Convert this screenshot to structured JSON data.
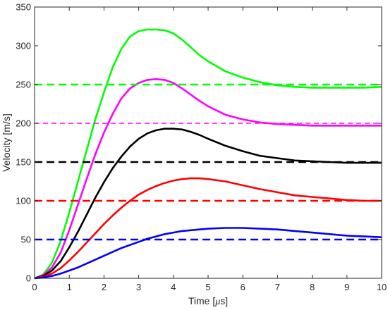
{
  "chart_data": {
    "type": "line",
    "xlabel_prefix": "Time [",
    "xlabel_symbol": "μ",
    "xlabel_suffix": "s]",
    "ylabel": "Velocity [m/s]",
    "xlim": [
      0,
      10
    ],
    "ylim": [
      0,
      350
    ],
    "xticks": [
      0,
      1,
      2,
      3,
      4,
      5,
      6,
      7,
      8,
      9,
      10
    ],
    "yticks": [
      0,
      50,
      100,
      150,
      200,
      250,
      300,
      350
    ],
    "grid": false,
    "legend": "none",
    "series": [
      {
        "color": "#00ff00",
        "style": "solid",
        "x": [
          0,
          0.25,
          0.5,
          0.75,
          1,
          1.25,
          1.5,
          1.75,
          2,
          2.25,
          2.5,
          2.75,
          3,
          3.25,
          3.5,
          3.75,
          4,
          4.25,
          4.5,
          4.75,
          5,
          5.5,
          6,
          6.5,
          7,
          7.5,
          8,
          8.5,
          9,
          9.5,
          10
        ],
        "y": [
          0,
          5,
          20,
          48,
          85,
          125,
          165,
          205,
          240,
          272,
          296,
          312,
          319,
          321,
          321,
          320,
          316,
          308,
          298,
          288,
          280,
          267,
          259,
          253,
          249,
          247,
          246,
          246,
          246,
          246,
          247
        ]
      },
      {
        "color": "#ff00ff",
        "style": "solid",
        "x": [
          0,
          0.25,
          0.5,
          0.75,
          1,
          1.25,
          1.5,
          1.75,
          2,
          2.25,
          2.5,
          2.75,
          3,
          3.25,
          3.5,
          3.75,
          4,
          4.25,
          4.5,
          4.75,
          5,
          5.5,
          6,
          6.5,
          7,
          7.5,
          8,
          8.5,
          9,
          9.5,
          10
        ],
        "y": [
          0,
          4,
          14,
          33,
          62,
          95,
          128,
          160,
          188,
          212,
          232,
          245,
          252,
          256,
          257,
          256,
          252,
          245,
          237,
          229,
          222,
          211,
          205,
          201,
          199,
          198,
          197,
          197,
          197,
          197,
          197
        ]
      },
      {
        "color": "#000000",
        "style": "solid",
        "x": [
          0,
          0.25,
          0.5,
          0.75,
          1,
          1.25,
          1.5,
          1.75,
          2,
          2.25,
          2.5,
          2.75,
          3,
          3.25,
          3.5,
          3.75,
          4,
          4.25,
          4.5,
          4.75,
          5,
          5.5,
          6,
          6.5,
          7,
          7.5,
          8,
          8.5,
          9,
          9.5,
          10
        ],
        "y": [
          0,
          3,
          10,
          22,
          40,
          60,
          82,
          104,
          124,
          142,
          157,
          170,
          180,
          187,
          191,
          193,
          193,
          192,
          189,
          185,
          180,
          171,
          164,
          158,
          155,
          152,
          151,
          150,
          149,
          149,
          149
        ]
      },
      {
        "color": "#ff0000",
        "style": "solid",
        "x": [
          0,
          0.25,
          0.5,
          0.75,
          1,
          1.25,
          1.5,
          1.75,
          2,
          2.25,
          2.5,
          2.75,
          3,
          3.25,
          3.5,
          3.75,
          4,
          4.25,
          4.5,
          4.75,
          5,
          5.5,
          6,
          6.5,
          7,
          7.5,
          8,
          8.5,
          9,
          9.5,
          10
        ],
        "y": [
          0,
          2,
          6,
          13,
          23,
          34,
          46,
          58,
          70,
          81,
          91,
          100,
          108,
          114,
          119,
          123,
          126,
          128,
          129,
          129,
          128,
          125,
          120,
          115,
          111,
          107,
          105,
          103,
          101,
          100,
          100
        ]
      },
      {
        "color": "#0000ff",
        "style": "solid",
        "x": [
          0,
          0.25,
          0.5,
          0.75,
          1,
          1.25,
          1.5,
          1.75,
          2,
          2.25,
          2.5,
          2.75,
          3,
          3.25,
          3.5,
          3.75,
          4,
          4.25,
          4.5,
          4.75,
          5,
          5.5,
          6,
          6.5,
          7,
          7.5,
          8,
          8.5,
          9,
          9.5,
          10
        ],
        "y": [
          0,
          1,
          3,
          6,
          10,
          14,
          19,
          24,
          29,
          34,
          39,
          43,
          47,
          51,
          54,
          57,
          59,
          61,
          62,
          63,
          64,
          65,
          65,
          64,
          63,
          61,
          59,
          57,
          55,
          54,
          53
        ]
      },
      {
        "color": "#00ff00",
        "style": "dashed-thick",
        "x": [
          0,
          10
        ],
        "y": [
          250,
          250
        ]
      },
      {
        "color": "#ff00ff",
        "style": "dashed-thin",
        "x": [
          0,
          10
        ],
        "y": [
          200,
          200
        ]
      },
      {
        "color": "#000000",
        "style": "dashed-thick",
        "x": [
          0,
          10
        ],
        "y": [
          150,
          150
        ]
      },
      {
        "color": "#ff0000",
        "style": "dashed-thick",
        "x": [
          0,
          10
        ],
        "y": [
          100,
          100
        ]
      },
      {
        "color": "#0000ff",
        "style": "dashed-thick",
        "x": [
          0,
          10
        ],
        "y": [
          50,
          50
        ]
      }
    ]
  }
}
